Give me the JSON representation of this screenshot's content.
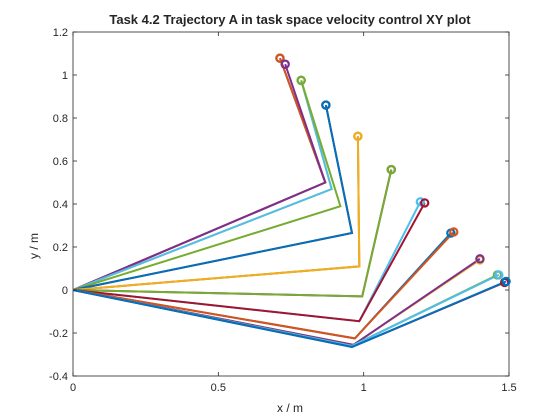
{
  "chart_data": {
    "type": "line",
    "title": "Task 4.2 Trajectory A in task space velocity control XY plot",
    "xlabel": "x / m",
    "ylabel": "y / m",
    "xlim": [
      0,
      1.5
    ],
    "ylim": [
      -0.4,
      1.2
    ],
    "x_ticks": [
      "0",
      "0.5",
      "1",
      "1.5"
    ],
    "y_ticks": [
      "-0.4",
      "-0.2",
      "0",
      "0.2",
      "0.4",
      "0.6",
      "0.8",
      "1",
      "1.2"
    ],
    "grid": false,
    "box": true,
    "base": [
      0,
      0
    ],
    "series": [
      {
        "color": "#0072BD",
        "elbow": [
          0.868,
          0.5
        ],
        "tip": [
          0.712,
          1.078
        ]
      },
      {
        "color": "#D95319",
        "elbow": [
          0.868,
          0.5
        ],
        "tip": [
          0.712,
          1.078
        ]
      },
      {
        "color": "#7E2F8E",
        "elbow": [
          0.868,
          0.5
        ],
        "tip": [
          0.73,
          1.05
        ]
      },
      {
        "color": "#EDB120",
        "elbow": [
          0.89,
          0.47
        ],
        "tip": [
          0.785,
          0.975
        ]
      },
      {
        "color": "#4DBEEE",
        "elbow": [
          0.89,
          0.47
        ],
        "tip": [
          0.785,
          0.975
        ]
      },
      {
        "color": "#77AC30",
        "elbow": [
          0.92,
          0.39
        ],
        "tip": [
          0.785,
          0.975
        ]
      },
      {
        "color": "#A2142F",
        "elbow": [
          0.96,
          0.265
        ],
        "tip": [
          0.87,
          0.86
        ]
      },
      {
        "color": "#0072BD",
        "elbow": [
          0.96,
          0.265
        ],
        "tip": [
          0.87,
          0.86
        ]
      },
      {
        "color": "#D95319",
        "elbow": [
          0.985,
          0.11
        ],
        "tip": [
          0.98,
          0.715
        ]
      },
      {
        "color": "#EDB120",
        "elbow": [
          0.985,
          0.11
        ],
        "tip": [
          0.98,
          0.715
        ]
      },
      {
        "color": "#7E2F8E",
        "elbow": [
          0.995,
          -0.03
        ],
        "tip": [
          1.095,
          0.56
        ]
      },
      {
        "color": "#77AC30",
        "elbow": [
          0.995,
          -0.03
        ],
        "tip": [
          1.095,
          0.56
        ]
      },
      {
        "color": "#4DBEEE",
        "elbow": [
          0.985,
          -0.145
        ],
        "tip": [
          1.195,
          0.41
        ]
      },
      {
        "color": "#A2142F",
        "elbow": [
          0.985,
          -0.145
        ],
        "tip": [
          1.21,
          0.405
        ]
      },
      {
        "color": "#0072BD",
        "elbow": [
          0.97,
          -0.225
        ],
        "tip": [
          1.3,
          0.265
        ]
      },
      {
        "color": "#D95319",
        "elbow": [
          0.97,
          -0.225
        ],
        "tip": [
          1.31,
          0.27
        ]
      },
      {
        "color": "#EDB120",
        "elbow": [
          0.965,
          -0.255
        ],
        "tip": [
          1.4,
          0.14
        ]
      },
      {
        "color": "#7E2F8E",
        "elbow": [
          0.965,
          -0.255
        ],
        "tip": [
          1.4,
          0.145
        ]
      },
      {
        "color": "#77AC30",
        "elbow": [
          0.96,
          -0.26
        ],
        "tip": [
          1.46,
          0.07
        ]
      },
      {
        "color": "#4DBEEE",
        "elbow": [
          0.96,
          -0.26
        ],
        "tip": [
          1.465,
          0.07
        ]
      },
      {
        "color": "#A2142F",
        "elbow": [
          0.96,
          -0.265
        ],
        "tip": [
          1.485,
          0.035
        ]
      },
      {
        "color": "#0072BD",
        "elbow": [
          0.96,
          -0.265
        ],
        "tip": [
          1.49,
          0.04
        ]
      }
    ]
  }
}
